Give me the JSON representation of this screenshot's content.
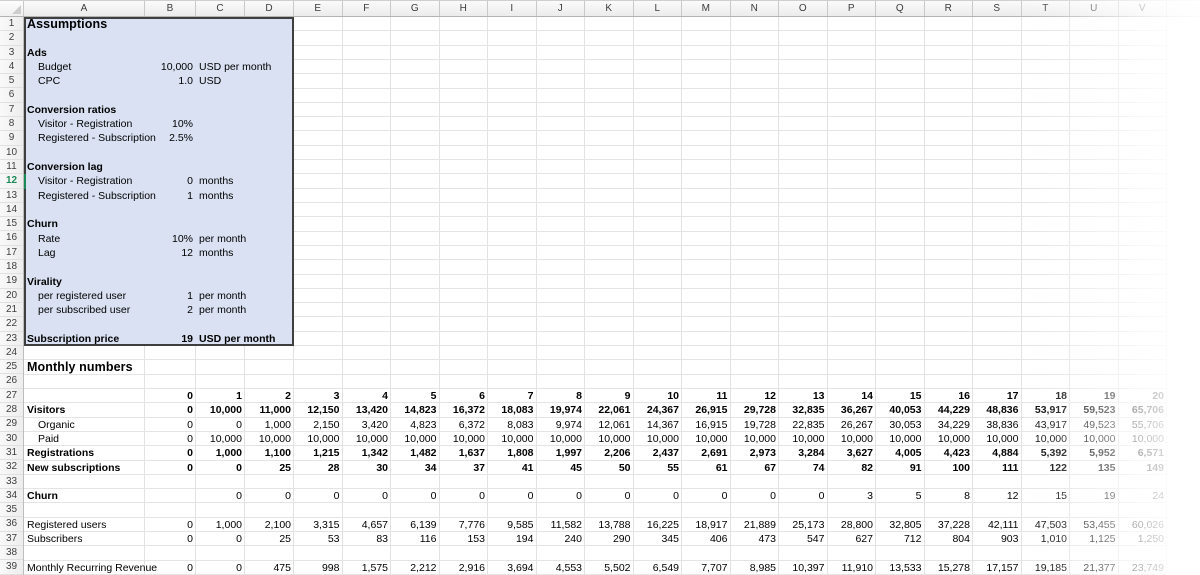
{
  "columns": [
    "A",
    "B",
    "C",
    "D",
    "E",
    "F",
    "G",
    "H",
    "I",
    "J",
    "K",
    "L",
    "M",
    "N",
    "O",
    "P",
    "Q",
    "R",
    "S",
    "T",
    "U",
    "V"
  ],
  "visible_rows": 39,
  "colors": {
    "selection_fill": "#d9e1f2",
    "selection_border": "#3f3f3f",
    "collaborator_green": "#1c8a57",
    "gridline": "#e2e2e2",
    "header_bg": "#f0f0f0"
  },
  "selection": {
    "range": "A1:D23"
  },
  "collaborator_cursor": {
    "cell": "A12",
    "row": 12
  },
  "assumptions": {
    "title": "Assumptions",
    "title_row": 1,
    "rows": [
      {
        "row": 3,
        "label": "Ads",
        "style": "section",
        "value": "",
        "unit": ""
      },
      {
        "row": 4,
        "label": "Budget",
        "style": "item",
        "value": "10,000",
        "unit": "USD per month"
      },
      {
        "row": 5,
        "label": "CPC",
        "style": "item",
        "value": "1.0",
        "unit": "USD"
      },
      {
        "row": 7,
        "label": "Conversion ratios",
        "style": "section",
        "value": "",
        "unit": ""
      },
      {
        "row": 8,
        "label": "Visitor - Registration",
        "style": "item",
        "value": "10%",
        "unit": ""
      },
      {
        "row": 9,
        "label": "Registered - Subscription",
        "style": "item",
        "value": "2.5%",
        "unit": ""
      },
      {
        "row": 11,
        "label": "Conversion lag",
        "style": "section",
        "value": "",
        "unit": ""
      },
      {
        "row": 12,
        "label": "Visitor - Registration",
        "style": "item",
        "value": "0",
        "unit": "months"
      },
      {
        "row": 13,
        "label": "Registered - Subscription",
        "style": "item",
        "value": "1",
        "unit": "months"
      },
      {
        "row": 15,
        "label": "Churn",
        "style": "section",
        "value": "",
        "unit": ""
      },
      {
        "row": 16,
        "label": "Rate",
        "style": "item",
        "value": "10%",
        "unit": "per month"
      },
      {
        "row": 17,
        "label": "Lag",
        "style": "item",
        "value": "12",
        "unit": "months"
      },
      {
        "row": 19,
        "label": "Virality",
        "style": "section",
        "value": "",
        "unit": ""
      },
      {
        "row": 20,
        "label": "per registered user",
        "style": "item",
        "value": "1",
        "unit": "per month"
      },
      {
        "row": 21,
        "label": "per subscribed user",
        "style": "item",
        "value": "2",
        "unit": "per month"
      },
      {
        "row": 23,
        "label": "Subscription price",
        "style": "total",
        "value": "19",
        "unit": "USD per month"
      }
    ]
  },
  "monthly": {
    "title": "Monthly numbers",
    "title_row": 25,
    "months_row": 27,
    "months": [
      0,
      1,
      2,
      3,
      4,
      5,
      6,
      7,
      8,
      9,
      10,
      11,
      12,
      13,
      14,
      15,
      16,
      17,
      18,
      19,
      20
    ],
    "series": [
      {
        "row": 28,
        "label": "Visitors",
        "label_bold": true,
        "values_bold": true,
        "indent": false,
        "values": [
          0,
          10000,
          11000,
          12150,
          13420,
          14823,
          16372,
          18083,
          19974,
          22061,
          24367,
          26915,
          29728,
          32835,
          36267,
          40053,
          44229,
          48836,
          53917,
          59523,
          65706
        ]
      },
      {
        "row": 29,
        "label": "Organic",
        "label_bold": false,
        "values_bold": false,
        "indent": true,
        "values": [
          0,
          0,
          1000,
          2150,
          3420,
          4823,
          6372,
          8083,
          9974,
          12061,
          14367,
          16915,
          19728,
          22835,
          26267,
          30053,
          34229,
          38836,
          43917,
          49523,
          55706
        ]
      },
      {
        "row": 30,
        "label": "Paid",
        "label_bold": false,
        "values_bold": false,
        "indent": true,
        "values": [
          0,
          10000,
          10000,
          10000,
          10000,
          10000,
          10000,
          10000,
          10000,
          10000,
          10000,
          10000,
          10000,
          10000,
          10000,
          10000,
          10000,
          10000,
          10000,
          10000,
          10000
        ]
      },
      {
        "row": 31,
        "label": "Registrations",
        "label_bold": true,
        "values_bold": true,
        "indent": false,
        "values": [
          0,
          1000,
          1100,
          1215,
          1342,
          1482,
          1637,
          1808,
          1997,
          2206,
          2437,
          2691,
          2973,
          3284,
          3627,
          4005,
          4423,
          4884,
          5392,
          5952,
          6571
        ]
      },
      {
        "row": 32,
        "label": "New subscriptions",
        "label_bold": true,
        "values_bold": true,
        "indent": false,
        "values": [
          0,
          0,
          25,
          28,
          30,
          34,
          37,
          41,
          45,
          50,
          55,
          61,
          67,
          74,
          82,
          91,
          100,
          111,
          122,
          135,
          149
        ]
      },
      {
        "row": 34,
        "label": "Churn",
        "label_bold": true,
        "values_bold": false,
        "indent": false,
        "values": [
          null,
          0,
          0,
          0,
          0,
          0,
          0,
          0,
          0,
          0,
          0,
          0,
          0,
          0,
          3,
          5,
          8,
          12,
          15,
          19,
          24
        ]
      },
      {
        "row": 36,
        "label": "Registered users",
        "label_bold": false,
        "values_bold": false,
        "indent": false,
        "values": [
          0,
          1000,
          2100,
          3315,
          4657,
          6139,
          7776,
          9585,
          11582,
          13788,
          16225,
          18917,
          21889,
          25173,
          28800,
          32805,
          37228,
          42111,
          47503,
          53455,
          60026
        ]
      },
      {
        "row": 37,
        "label": "Subscribers",
        "label_bold": false,
        "values_bold": false,
        "indent": false,
        "values": [
          0,
          0,
          25,
          53,
          83,
          116,
          153,
          194,
          240,
          290,
          345,
          406,
          473,
          547,
          627,
          712,
          804,
          903,
          1010,
          1125,
          1250
        ]
      },
      {
        "row": 39,
        "label": "Monthly Recurring Revenue",
        "label_bold": false,
        "values_bold": false,
        "indent": false,
        "values": [
          0,
          0,
          475,
          998,
          1575,
          2212,
          2916,
          3694,
          4553,
          5502,
          6549,
          7707,
          8985,
          10397,
          11910,
          13533,
          15278,
          17157,
          19185,
          21377,
          23749
        ]
      }
    ]
  }
}
